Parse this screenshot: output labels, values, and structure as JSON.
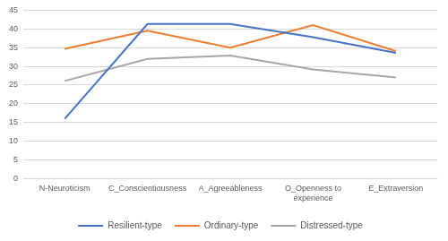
{
  "chart_data": {
    "type": "line",
    "categories": [
      "N-Neuroticism",
      "C_Conscientiousness",
      "A_Agreeableness",
      "O_Openness to experience",
      "E_Extraversion"
    ],
    "series": [
      {
        "name": "Resilient-type",
        "color": "#4472C4",
        "values": [
          16,
          41.3,
          41.3,
          37.8,
          33.6
        ]
      },
      {
        "name": "Ordinary-type",
        "color": "#ED7D31",
        "values": [
          34.7,
          39.5,
          35,
          41,
          34.1
        ]
      },
      {
        "name": "Distressed-type",
        "color": "#A5A5A5",
        "values": [
          26.1,
          32,
          32.9,
          29.2,
          27
        ]
      }
    ],
    "ylim": [
      0,
      45
    ],
    "yticks": [
      0,
      5,
      10,
      15,
      20,
      25,
      30,
      35,
      40,
      45
    ],
    "grid": true,
    "legend": "bottom"
  }
}
